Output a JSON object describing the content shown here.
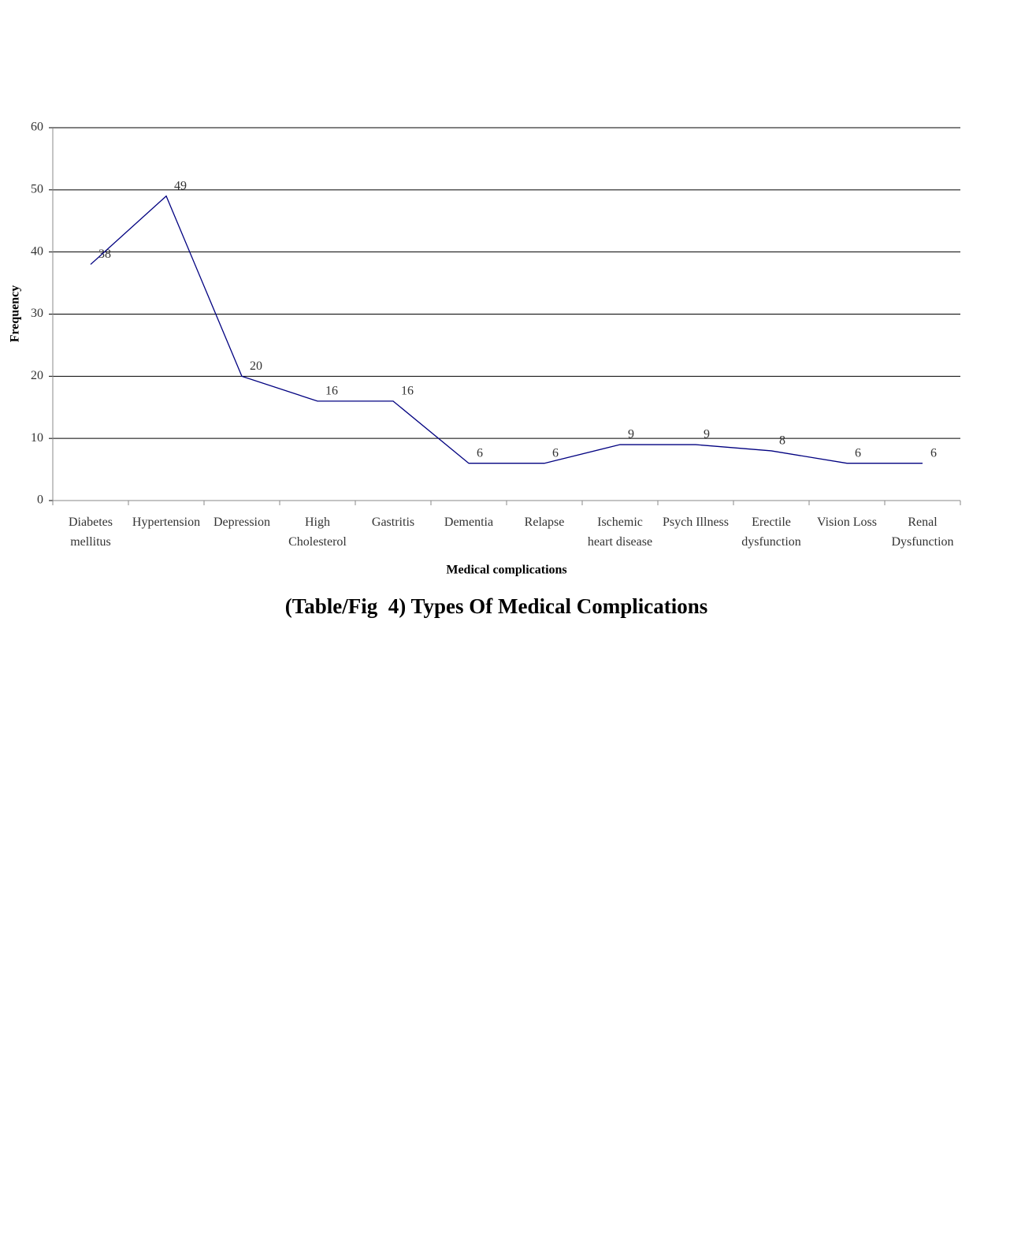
{
  "chart_data": {
    "type": "line",
    "title": "(Table/Fig  4) Types Of Medical Complications",
    "x_label": "Medical complications",
    "y_label": "Frequency",
    "categories": [
      "Diabetes mellitus",
      "Hypertension",
      "Depression",
      "High Cholesterol",
      "Gastritis",
      "Dementia",
      "Relapse",
      "Ischemic heart disease",
      "Psych Illness",
      "Erectile dysfunction",
      "Vision Loss",
      "Renal Dysfunction"
    ],
    "series": [
      {
        "name": "Frequency",
        "color": "#000080",
        "values": [
          38,
          49,
          20,
          16,
          16,
          6,
          6,
          9,
          9,
          8,
          6,
          6
        ]
      }
    ],
    "ylim": [
      0,
      60
    ],
    "yticks": [
      0,
      10,
      20,
      30,
      40,
      50,
      60
    ],
    "grid": true
  }
}
